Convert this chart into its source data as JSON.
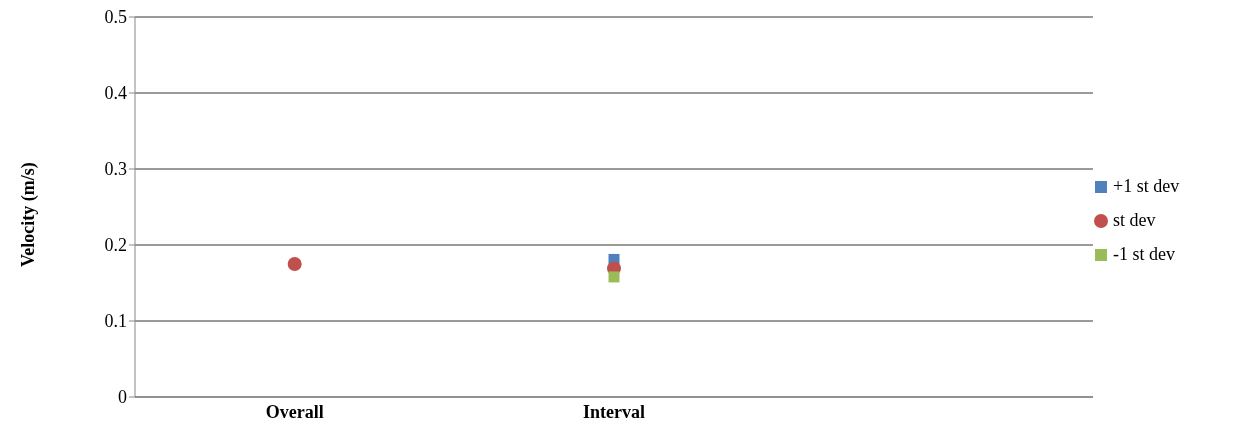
{
  "chart_data": {
    "type": "scatter",
    "ylabel": "Velocity (m/s)",
    "categories": [
      "Overall",
      "Interval",
      null
    ],
    "series": [
      {
        "name": "+1 st dev",
        "color": "#4f81bd",
        "marker": "square",
        "values": [
          null,
          0.181,
          null
        ]
      },
      {
        "name": "st dev",
        "color": "#c0504d",
        "marker": "circle",
        "values": [
          0.175,
          0.169,
          null
        ]
      },
      {
        "name": "-1 st dev",
        "color": "#9bbb59",
        "marker": "square",
        "values": [
          null,
          0.158,
          null
        ]
      }
    ],
    "ylim": [
      0,
      0.5
    ],
    "yticks": [
      0,
      0.1,
      0.2,
      0.3,
      0.4,
      0.5
    ],
    "grid": "y",
    "legend": "right"
  }
}
